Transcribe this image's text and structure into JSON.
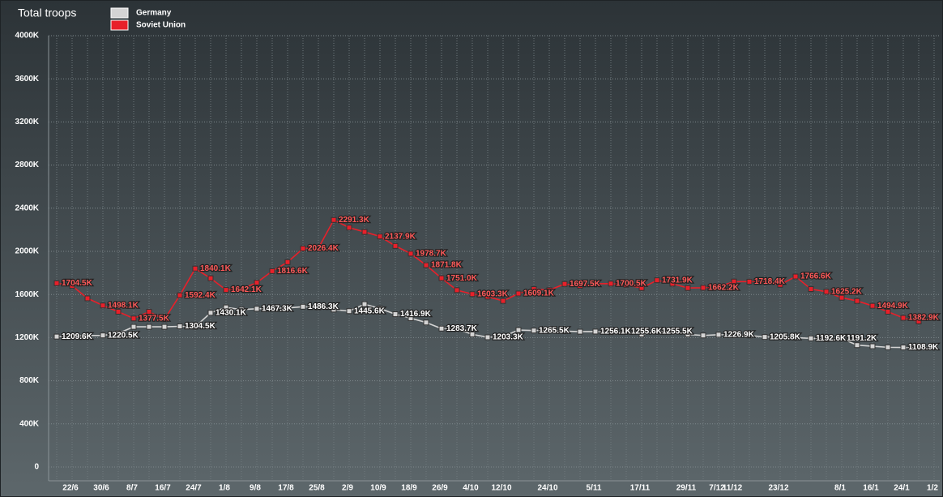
{
  "chart_data": {
    "type": "line",
    "title": "Total troops",
    "categories": [
      null,
      "22/6",
      null,
      "30/6",
      null,
      "8/7",
      null,
      "16/7",
      null,
      "24/7",
      null,
      "1/8",
      null,
      "9/8",
      null,
      "17/8",
      null,
      "25/8",
      null,
      "2/9",
      null,
      "10/9",
      null,
      "18/9",
      null,
      "26/9",
      null,
      "4/10",
      null,
      "12/10",
      null,
      null,
      "24/10",
      null,
      null,
      "5/11",
      null,
      null,
      "17/11",
      null,
      null,
      "29/11",
      null,
      "7/12",
      "11/12",
      null,
      null,
      "23/12",
      null,
      null,
      null,
      "8/1",
      null,
      "16/1",
      null,
      "24/1",
      null,
      "1/2"
    ],
    "series": [
      {
        "name": "Germany",
        "color": "#d4d4d4",
        "values": [
          1209.6,
          1210,
          1220,
          1220.5,
          1240,
          1300,
          1300,
          1300,
          1304.5,
          1300,
          1430.1,
          1480,
          1460,
          1467.3,
          1470,
          1475,
          1486.3,
          1480,
          1460,
          1445.6,
          1510,
          1470,
          1416.9,
          1380,
          1340,
          1283.7,
          1280,
          1230,
          1203.3,
          1210,
          1270,
          1265.5,
          1270,
          1260,
          1255,
          1256.1,
          1250,
          1255.6,
          1230,
          1255.5,
          1260,
          1230,
          1220,
          1226.9,
          1225,
          1220,
          1205.8,
          1210,
          1200,
          1192.6,
          1185,
          1191.2,
          1130,
          1120,
          1110,
          1108.9,
          1105,
          1110
        ],
        "value_labels": [
          "1209.6K",
          null,
          null,
          "1220.5K",
          null,
          null,
          null,
          null,
          "1304.5K",
          null,
          "1430.1K",
          null,
          null,
          "1467.3K",
          null,
          null,
          "1486.3K",
          null,
          null,
          "1445.6K",
          null,
          null,
          "1416.9K",
          null,
          null,
          "1283.7K",
          null,
          null,
          "1203.3K",
          null,
          null,
          "1265.5K",
          null,
          null,
          null,
          "1256.1K",
          null,
          "1255.6K",
          null,
          "1255.5K",
          null,
          null,
          null,
          "1226.9K",
          null,
          null,
          "1205.8K",
          null,
          null,
          "1192.6K",
          null,
          "1191.2K",
          null,
          null,
          null,
          "1108.9K",
          null,
          null
        ]
      },
      {
        "name": "Soviet Union",
        "color": "#e8202a",
        "values": [
          1704.5,
          1680,
          1564,
          1498.1,
          1440,
          1377.5,
          1440,
          1370,
          1592.4,
          1840.1,
          1750,
          1642.1,
          1650,
          1710,
          1816.6,
          1900,
          2026.4,
          2030,
          2291.3,
          2220,
          2180,
          2137.9,
          2050,
          1978.7,
          1871.8,
          1751,
          1640,
          1603.3,
          1580,
          1540,
          1609.1,
          1650,
          1640,
          1697.5,
          1680,
          1700,
          1700.5,
          1690,
          1660,
          1731.9,
          1700,
          1660,
          1662.2,
          1670,
          1720,
          1718.4,
          1720,
          1690,
          1766.6,
          1650,
          1625.2,
          1570,
          1540,
          1494.9,
          1440,
          1382.9,
          1350,
          null
        ],
        "value_labels": [
          "1704.5K",
          null,
          null,
          "1498.1K",
          null,
          "1377.5K",
          null,
          null,
          "1592.4K",
          "1840.1K",
          null,
          "1642.1K",
          null,
          null,
          "1816.6K",
          null,
          "2026.4K",
          null,
          "2291.3K",
          null,
          null,
          "2137.9K",
          null,
          "1978.7K",
          "1871.8K",
          "1751.0K",
          null,
          "1603.3K",
          null,
          null,
          "1609.1K",
          null,
          null,
          "1697.5K",
          null,
          null,
          "1700.5K",
          null,
          null,
          "1731.9K",
          null,
          null,
          "1662.2K",
          null,
          null,
          "1718.4K",
          null,
          null,
          "1766.6K",
          null,
          "1625.2K",
          null,
          null,
          "1494.9K",
          null,
          "1382.9K",
          null,
          null
        ]
      }
    ],
    "ylim": [
      0,
      4000
    ],
    "yticks": [
      0,
      {
        "value": 400,
        "label": "400K"
      },
      {
        "value": 800,
        "label": "800K"
      },
      {
        "value": 1200,
        "label": "1200K"
      },
      {
        "value": 1600,
        "label": "1600K"
      },
      {
        "value": 2000,
        "label": "2000K"
      },
      {
        "value": 2400,
        "label": "2400K"
      },
      {
        "value": 2800,
        "label": "2800K"
      },
      {
        "value": 3200,
        "label": "3200K"
      },
      {
        "value": 3600,
        "label": "3600K"
      },
      {
        "value": 4000,
        "label": "4000K"
      }
    ],
    "grid": true
  }
}
